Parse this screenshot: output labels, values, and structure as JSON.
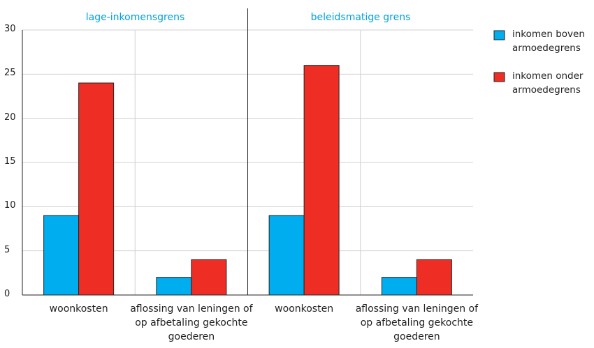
{
  "chart_data": {
    "type": "bar",
    "ylim": [
      0,
      30
    ],
    "yticks": [
      0,
      5,
      10,
      15,
      20,
      25,
      30
    ],
    "grid": true,
    "series": [
      {
        "name": "inkomen boven armoedegrens",
        "color": "#00aeef"
      },
      {
        "name": "inkomen onder armoedegrens",
        "color": "#ee2e24"
      }
    ],
    "panels": [
      {
        "title": "lage-inkomensgrens",
        "categories": [
          "woonkosten",
          "aflossing van leningen of op afbetaling gekochte goederen"
        ],
        "values": [
          [
            9,
            2
          ],
          [
            24,
            4
          ]
        ]
      },
      {
        "title": "beleidsmatige grens",
        "categories": [
          "woonkosten",
          "aflossing van leningen of op afbetaling gekochte goederen"
        ],
        "values": [
          [
            9,
            2
          ],
          [
            26,
            4
          ]
        ]
      }
    ]
  }
}
